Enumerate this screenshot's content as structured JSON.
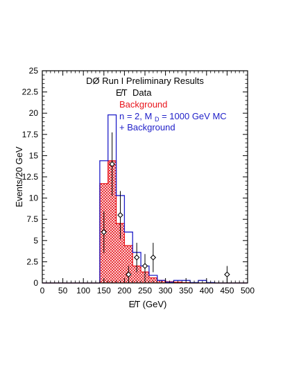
{
  "chart_data": {
    "type": "bar",
    "title": "DØ Run I Preliminary Results",
    "xlabel": "E̸T (GeV)",
    "ylabel": "Events/20 GeV",
    "xlim": [
      0,
      500
    ],
    "ylim": [
      0,
      25
    ],
    "x_ticks": [
      "0",
      "50",
      "100",
      "150",
      "200",
      "250",
      "300",
      "350",
      "400",
      "450",
      "500"
    ],
    "y_ticks": [
      "0",
      "2.5",
      "5",
      "7.5",
      "10",
      "12.5",
      "15",
      "17.5",
      "20",
      "22.5",
      "25"
    ],
    "grid": false,
    "legend_position": "top-right",
    "bin_edges": [
      0,
      20,
      40,
      60,
      80,
      100,
      120,
      140,
      160,
      180,
      200,
      220,
      240,
      260,
      280,
      300,
      320,
      340,
      360,
      380,
      400,
      420,
      440,
      460,
      480,
      500
    ],
    "series": [
      {
        "name": "Data",
        "kind": "points",
        "color": "#000000",
        "x": [
          150,
          170,
          190,
          210,
          230,
          250,
          270,
          450
        ],
        "y": [
          6,
          14,
          8,
          1,
          3,
          2,
          3,
          1
        ],
        "yerr": [
          2.45,
          3.74,
          2.83,
          1.0,
          1.73,
          1.41,
          1.73,
          1.0
        ]
      },
      {
        "name": "Background",
        "kind": "hist-filled",
        "color": "#e8141b",
        "values": [
          0,
          0,
          0,
          0,
          0,
          0,
          0,
          11.7,
          14.4,
          7.0,
          4.4,
          2.0,
          1.3,
          0.6,
          0.3,
          0.15,
          0.1,
          0.05,
          0,
          0,
          0,
          0,
          0,
          0,
          0
        ]
      },
      {
        "name": "n = 2, MD = 1000 GeV MC + Background",
        "kind": "hist-outline",
        "color": "#1e1ec8",
        "values": [
          0,
          0,
          0,
          0,
          0,
          0,
          0,
          14.4,
          19.8,
          10.3,
          6.0,
          3.6,
          2.0,
          0.9,
          0.3,
          0.1,
          0.3,
          0.3,
          0.05,
          0.3,
          0.05,
          0,
          0,
          0,
          0
        ]
      }
    ],
    "legend": {
      "data_symbol": "E̸T",
      "data_word": "Data",
      "background": "Background",
      "signal_line1_pre": "n = 2, M",
      "signal_line1_sub": "D",
      "signal_line1_post": " = 1000 GeV MC",
      "signal_line2": "+ Background"
    }
  },
  "colors": {
    "background_fill": "#e8141b",
    "signal_line": "#1e1ec8",
    "data_marker": "#000000"
  }
}
